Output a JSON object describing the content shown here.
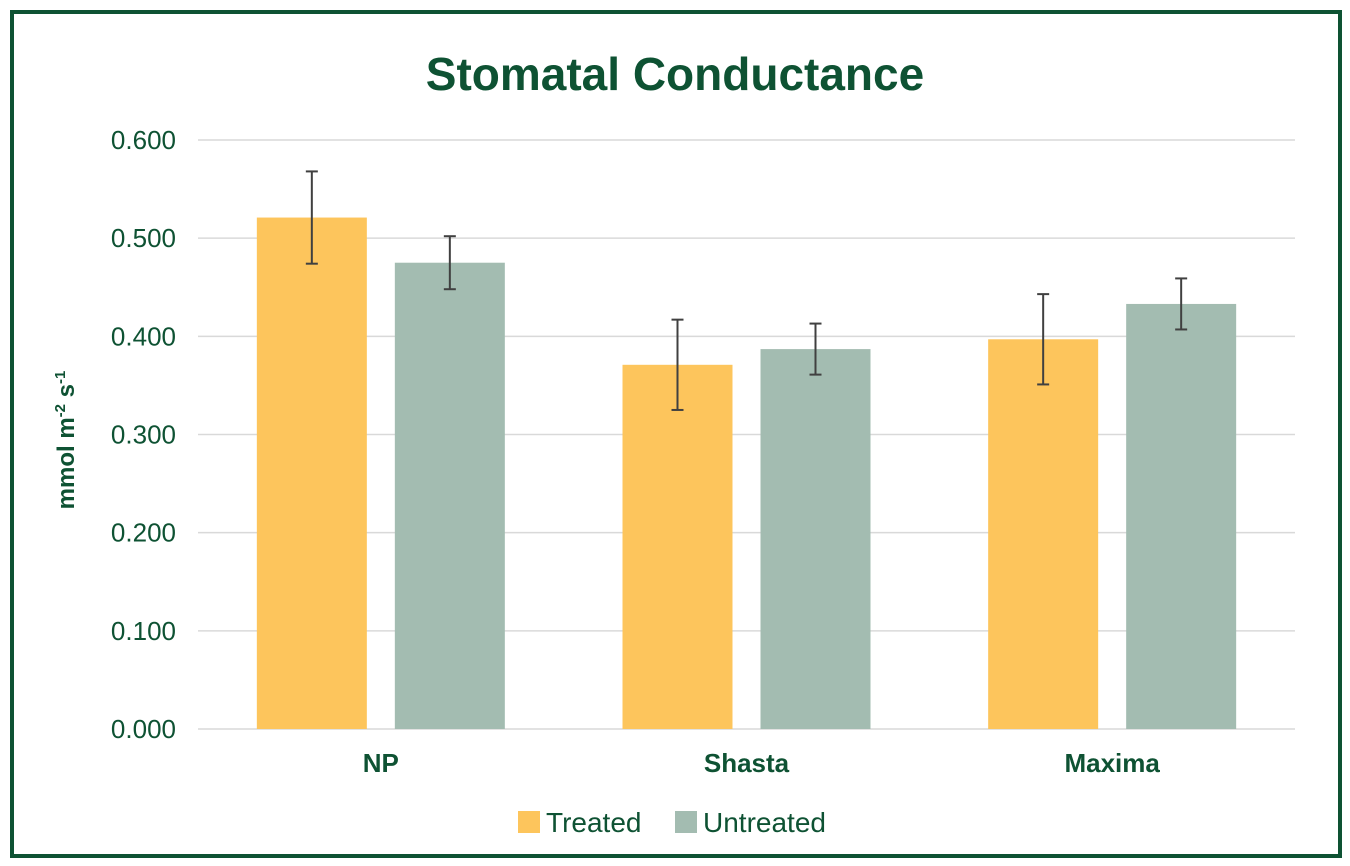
{
  "chart_data": {
    "type": "bar",
    "title": "Stomatal Conductance",
    "ylabel": "mmol m-2 s-1",
    "ylabel_parts": {
      "base1": "mmol m",
      "sup1": "-2",
      "base2": " s",
      "sup2": "-1"
    },
    "xlabel": "",
    "categories": [
      "NP",
      "Shasta",
      "Maxima"
    ],
    "series": [
      {
        "name": "Treated",
        "color": "#fdc55c",
        "values": [
          0.521,
          0.371,
          0.397
        ],
        "errors": [
          0.047,
          0.046,
          0.046
        ]
      },
      {
        "name": "Untreated",
        "color": "#a3bcb1",
        "values": [
          0.475,
          0.387,
          0.433
        ],
        "errors": [
          0.027,
          0.026,
          0.026
        ]
      }
    ],
    "ylim": [
      0,
      0.6
    ],
    "yticks": [
      "0.000",
      "0.100",
      "0.200",
      "0.300",
      "0.400",
      "0.500",
      "0.600"
    ],
    "grid": true,
    "legend_position": "bottom"
  },
  "colors": {
    "accent": "#0e5233",
    "grid": "#d9d9d9",
    "error_bar": "#404040"
  }
}
